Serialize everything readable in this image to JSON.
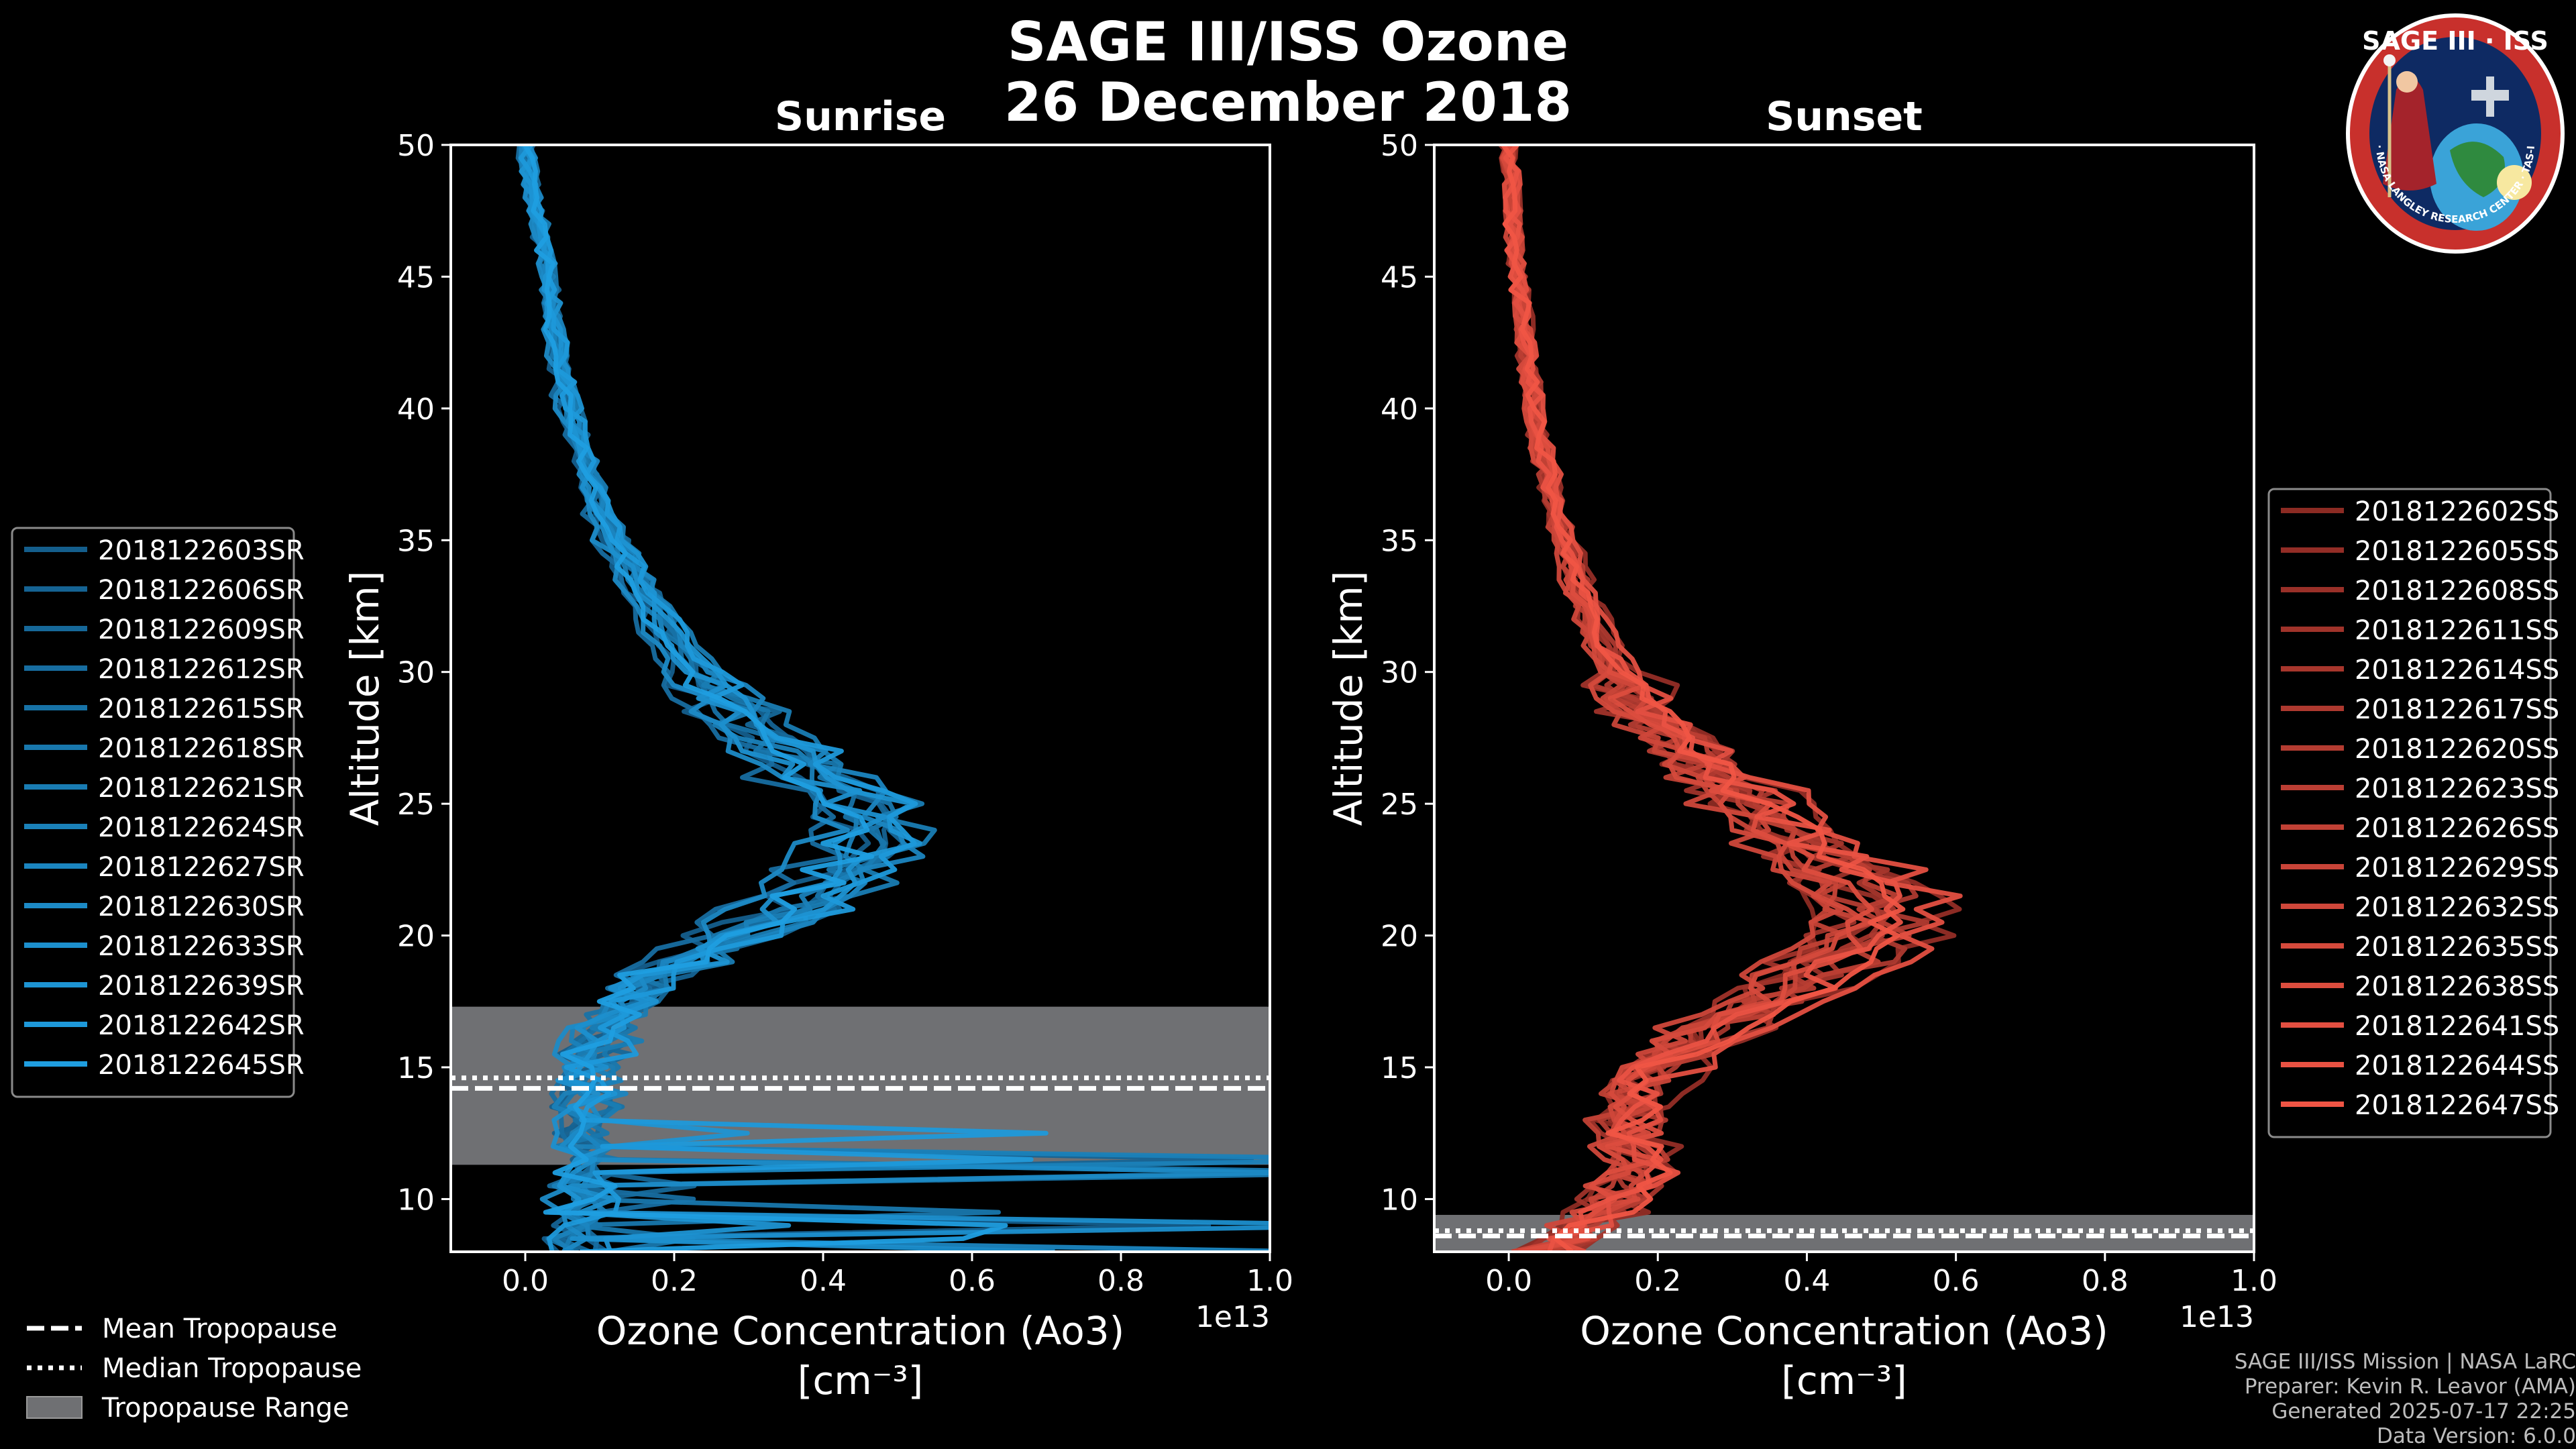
{
  "title": {
    "line1": "SAGE III/ISS Ozone",
    "line2": "26 December 2018"
  },
  "logo": {
    "name": "SAGE III · ISS",
    "ring_text": "BALL · NASA LANGLEY RESEARCH CENTER · TAS-I · ESA"
  },
  "footer": {
    "line1": "SAGE III/ISS Mission | NASA LaRC",
    "line2": "Preparer: Kevin R. Leavor (AMA)",
    "line3": "Generated 2025-07-17 22:25",
    "line4": "Data Version: 6.0.0"
  },
  "tropopause_legend": [
    {
      "label": "Mean Tropopause",
      "style": "dashed"
    },
    {
      "label": "Median Tropopause",
      "style": "dotted"
    },
    {
      "label": "Tropopause Range",
      "style": "patch"
    }
  ],
  "colors": {
    "sunrise": "#1f9ee0",
    "sunset": "#f05545",
    "tropopause_fill": "#6f7073"
  },
  "chart_data": [
    {
      "type": "line",
      "title": "Sunrise",
      "xlabel": "Ozone Concentration (Ao3)",
      "xlabel_units": "[cm⁻³]",
      "ylabel": "Altitude [km]",
      "x_offset_text": "1e13",
      "xlim": [
        -0.1,
        1.0
      ],
      "ylim": [
        8,
        50
      ],
      "xticks": [
        0.0,
        0.2,
        0.4,
        0.6,
        0.8,
        1.0
      ],
      "xtick_labels": [
        "0.0",
        "0.2",
        "0.4",
        "0.6",
        "0.8",
        "1.0"
      ],
      "yticks": [
        10,
        15,
        20,
        25,
        30,
        35,
        40,
        45,
        50
      ],
      "tropopause": {
        "mean": 14.2,
        "median": 14.6,
        "range": [
          11.3,
          17.3
        ]
      },
      "legend_position": "left-outside",
      "series_names": [
        "2018122603SR",
        "2018122606SR",
        "2018122609SR",
        "2018122612SR",
        "2018122615SR",
        "2018122618SR",
        "2018122621SR",
        "2018122624SR",
        "2018122627SR",
        "2018122630SR",
        "2018122633SR",
        "2018122639SR",
        "2018122642SR",
        "2018122645SR"
      ],
      "mean_profile": {
        "alt": [
          8,
          9,
          10,
          11,
          12,
          13,
          14,
          15,
          16,
          17,
          18,
          19,
          20,
          21,
          22,
          23,
          24,
          25,
          26,
          27,
          28,
          29,
          30,
          31,
          32,
          33,
          34,
          35,
          36,
          37,
          38,
          39,
          40,
          41,
          42,
          43,
          44,
          45,
          46,
          47,
          48,
          49,
          50
        ],
        "o3": [
          0.07,
          0.07,
          0.08,
          0.08,
          0.08,
          0.08,
          0.09,
          0.09,
          0.1,
          0.12,
          0.15,
          0.21,
          0.28,
          0.36,
          0.42,
          0.46,
          0.47,
          0.45,
          0.4,
          0.35,
          0.3,
          0.26,
          0.23,
          0.2,
          0.18,
          0.16,
          0.14,
          0.12,
          0.1,
          0.09,
          0.08,
          0.07,
          0.06,
          0.05,
          0.045,
          0.04,
          0.035,
          0.03,
          0.025,
          0.02,
          0.01,
          0.005,
          0.0
        ]
      },
      "anomalies_note": "several profiles show large spikes below ~13 km reaching beyond 1.0e13"
    },
    {
      "type": "line",
      "title": "Sunset",
      "xlabel": "Ozone Concentration (Ao3)",
      "xlabel_units": "[cm⁻³]",
      "ylabel": "Altitude [km]",
      "x_offset_text": "1e13",
      "xlim": [
        -0.1,
        1.0
      ],
      "ylim": [
        8,
        50
      ],
      "xticks": [
        0.0,
        0.2,
        0.4,
        0.6,
        0.8,
        1.0
      ],
      "xtick_labels": [
        "0.0",
        "0.2",
        "0.4",
        "0.6",
        "0.8",
        "1.0"
      ],
      "yticks": [
        10,
        15,
        20,
        25,
        30,
        35,
        40,
        45,
        50
      ],
      "tropopause": {
        "mean": 8.6,
        "median": 8.8,
        "range": [
          8.0,
          9.4
        ]
      },
      "legend_position": "right-outside",
      "series_names": [
        "2018122602SS",
        "2018122605SS",
        "2018122608SS",
        "2018122611SS",
        "2018122614SS",
        "2018122617SS",
        "2018122620SS",
        "2018122623SS",
        "2018122626SS",
        "2018122629SS",
        "2018122632SS",
        "2018122635SS",
        "2018122638SS",
        "2018122641SS",
        "2018122644SS",
        "2018122647SS"
      ],
      "mean_profile": {
        "alt": [
          8,
          9,
          10,
          11,
          12,
          13,
          14,
          15,
          16,
          17,
          18,
          19,
          20,
          21,
          22,
          23,
          24,
          25,
          26,
          27,
          28,
          29,
          30,
          31,
          32,
          33,
          34,
          35,
          36,
          37,
          38,
          39,
          40,
          41,
          42,
          43,
          44,
          45,
          46,
          47,
          48,
          49,
          50
        ],
        "o3": [
          0.05,
          0.1,
          0.15,
          0.17,
          0.17,
          0.16,
          0.17,
          0.2,
          0.25,
          0.31,
          0.38,
          0.44,
          0.48,
          0.49,
          0.47,
          0.43,
          0.38,
          0.33,
          0.28,
          0.24,
          0.2,
          0.17,
          0.145,
          0.125,
          0.11,
          0.095,
          0.085,
          0.075,
          0.065,
          0.055,
          0.048,
          0.04,
          0.035,
          0.03,
          0.025,
          0.02,
          0.016,
          0.012,
          0.009,
          0.006,
          0.004,
          0.002,
          0.0
        ]
      }
    }
  ]
}
